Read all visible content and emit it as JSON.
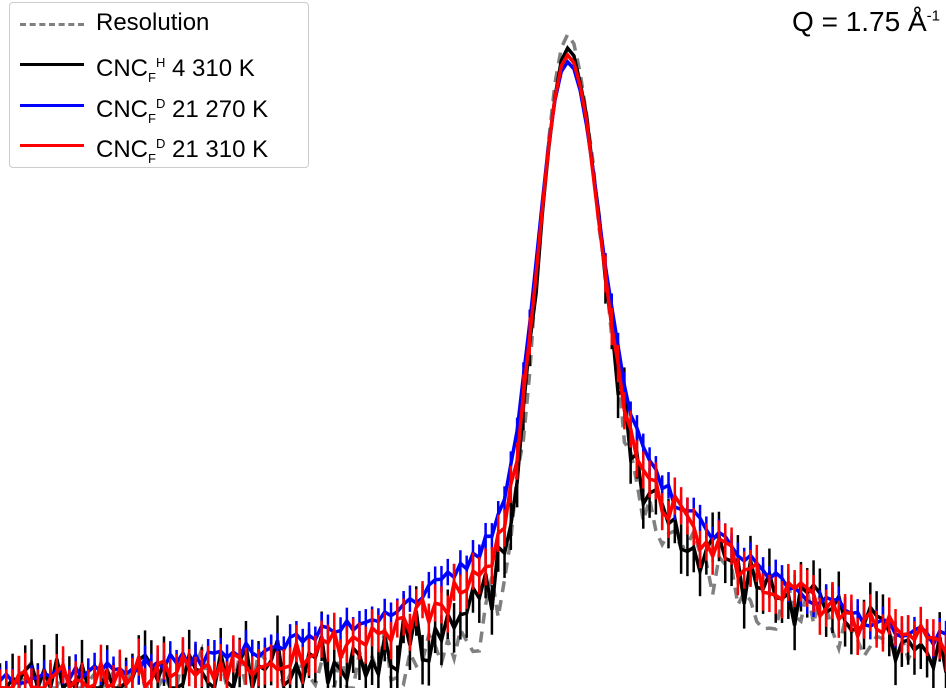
{
  "chart_data": {
    "type": "line",
    "annotation": {
      "prefix": "Q = 1.75 Å",
      "superscript": "-1"
    },
    "x_domain": [
      -1,
      1
    ],
    "y_domain": [
      0,
      1
    ],
    "peak": {
      "center": 0.2,
      "width": 0.06
    },
    "legend_position": "top-left",
    "series": [
      {
        "name": "Resolution",
        "label_main": "Resolution",
        "label_sub": "",
        "label_sup": "",
        "label_rest": "",
        "color": "#808080",
        "style": "dashed",
        "peak_height": 0.95,
        "tail_left": 0.07,
        "tail_right": 0.3,
        "noise": 0.045,
        "errorbars": false,
        "seed": 11
      },
      {
        "name": "CNC_F^H 4 310 K",
        "label_main": "CNC",
        "label_sub": "F",
        "label_sup": "H",
        "label_rest": " 4 310 K",
        "color": "#000000",
        "style": "solid",
        "peak_height": 0.93,
        "tail_left": 0.11,
        "tail_right": 0.34,
        "noise": 0.04,
        "errorbars": true,
        "seed": 23
      },
      {
        "name": "CNC_F^D 21 270 K",
        "label_main": "CNC",
        "label_sub": "F",
        "label_sup": "D",
        "label_rest": " 21 270 K",
        "color": "#0000ff",
        "style": "solid",
        "peak_height": 0.91,
        "tail_left": 0.23,
        "tail_right": 0.4,
        "noise": 0.012,
        "errorbars": true,
        "seed": 37
      },
      {
        "name": "CNC_F^D 21 310 K",
        "label_main": "CNC",
        "label_sub": "F",
        "label_sup": "D",
        "label_rest": " 21 310 K",
        "color": "#ff0000",
        "style": "solid",
        "peak_height": 0.92,
        "tail_left": 0.17,
        "tail_right": 0.37,
        "noise": 0.025,
        "errorbars": true,
        "seed": 53
      }
    ]
  }
}
